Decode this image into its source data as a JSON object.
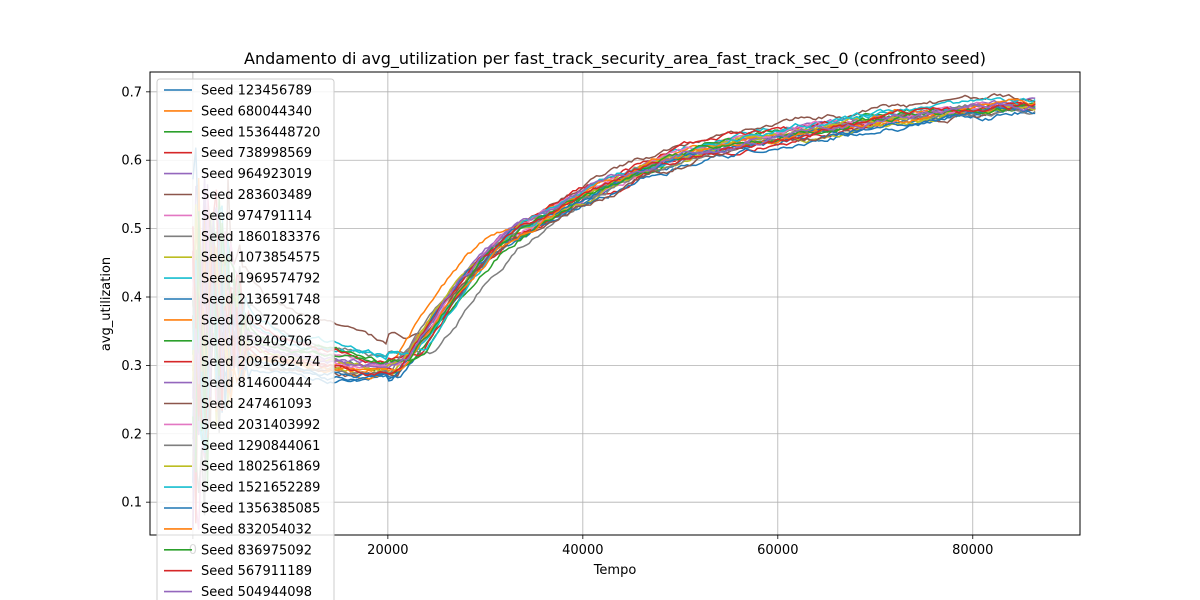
{
  "chart_data": {
    "type": "line",
    "title": "Andamento di avg_utilization per fast_track_security_area_fast_track_sec_0 (confronto seed)",
    "xlabel": "Tempo",
    "ylabel": "avg_utilization",
    "xlim": [
      -4400,
      91000
    ],
    "ylim": [
      0.052,
      0.729
    ],
    "x_ticks": [
      0,
      20000,
      40000,
      60000,
      80000
    ],
    "x_tick_labels": [
      "0",
      "20000",
      "40000",
      "60000",
      "80000"
    ],
    "y_ticks": [
      0.1,
      0.2,
      0.3,
      0.4,
      0.5,
      0.6,
      0.7
    ],
    "y_tick_labels": [
      "0.1",
      "0.2",
      "0.3",
      "0.4",
      "0.5",
      "0.6",
      "0.7"
    ],
    "grid": true,
    "legend_position": "upper-left",
    "template_x": [
      0,
      1000,
      2500,
      5000,
      8000,
      12000,
      16000,
      20000,
      22000,
      24000,
      26000,
      28000,
      30000,
      32000,
      34000,
      36000,
      38000,
      40000,
      44000,
      48000,
      52000,
      56000,
      60000,
      64000,
      68000,
      72000,
      76000,
      80000,
      84000,
      86400
    ],
    "template_y": [
      0.25,
      0.42,
      0.38,
      0.34,
      0.32,
      0.31,
      0.3,
      0.295,
      0.3,
      0.34,
      0.385,
      0.42,
      0.455,
      0.48,
      0.5,
      0.515,
      0.53,
      0.545,
      0.57,
      0.595,
      0.612,
      0.625,
      0.635,
      0.643,
      0.652,
      0.66,
      0.667,
      0.673,
      0.676,
      0.678
    ],
    "series": [
      {
        "name": "Seed 123456789",
        "color": "#1f77b4",
        "offset": -0.02,
        "shift": 800
      },
      {
        "name": "Seed 680044340",
        "color": "#ff7f0e",
        "offset": -0.01,
        "shift": 1500
      },
      {
        "name": "Seed 1536448720",
        "color": "#2ca02c",
        "offset": 0.005,
        "shift": -500
      },
      {
        "name": "Seed 738998569",
        "color": "#d62728",
        "offset": 0.0,
        "shift": 0
      },
      {
        "name": "Seed 964923019",
        "color": "#9467bd",
        "offset": 0.008,
        "shift": 400
      },
      {
        "name": "Seed 283603489",
        "color": "#8c564b",
        "offset": 0.05,
        "shift": -2500
      },
      {
        "name": "Seed 974791114",
        "color": "#e377c2",
        "offset": 0.012,
        "shift": -800
      },
      {
        "name": "Seed 1860183376",
        "color": "#7f7f7f",
        "offset": 0.02,
        "shift": -3000
      },
      {
        "name": "Seed 1073854575",
        "color": "#bcbd22",
        "offset": -0.008,
        "shift": 1200
      },
      {
        "name": "Seed 1969574792",
        "color": "#17becf",
        "offset": 0.015,
        "shift": -1000
      },
      {
        "name": "Seed 2136591748",
        "color": "#1f77b4",
        "offset": -0.03,
        "shift": 1800
      },
      {
        "name": "Seed 2097200628",
        "color": "#ff7f0e",
        "offset": -0.005,
        "shift": 2200
      },
      {
        "name": "Seed 859409706",
        "color": "#2ca02c",
        "offset": 0.01,
        "shift": -1500
      },
      {
        "name": "Seed 2091692474",
        "color": "#d62728",
        "offset": 0.018,
        "shift": -1200
      },
      {
        "name": "Seed 814600444",
        "color": "#9467bd",
        "offset": 0.003,
        "shift": 600
      },
      {
        "name": "Seed 247461093",
        "color": "#8c564b",
        "offset": -0.02,
        "shift": 1000
      },
      {
        "name": "Seed 2031403992",
        "color": "#e377c2",
        "offset": 0.006,
        "shift": 300
      },
      {
        "name": "Seed 1290844061",
        "color": "#7f7f7f",
        "offset": -0.012,
        "shift": 1600
      },
      {
        "name": "Seed 1802561869",
        "color": "#bcbd22",
        "offset": 0.002,
        "shift": 700
      },
      {
        "name": "Seed 1521652289",
        "color": "#17becf",
        "offset": 0.025,
        "shift": -1800
      },
      {
        "name": "Seed 1356385085",
        "color": "#1f77b4",
        "offset": -0.015,
        "shift": 1400
      },
      {
        "name": "Seed 832054032",
        "color": "#ff7f0e",
        "offset": -0.003,
        "shift": 500
      },
      {
        "name": "Seed 836975092",
        "color": "#2ca02c",
        "offset": 0.007,
        "shift": -300
      },
      {
        "name": "Seed 567911189",
        "color": "#d62728",
        "offset": -0.006,
        "shift": 900
      },
      {
        "name": "Seed 504944098",
        "color": "#9467bd",
        "offset": 0.004,
        "shift": 200
      }
    ]
  }
}
